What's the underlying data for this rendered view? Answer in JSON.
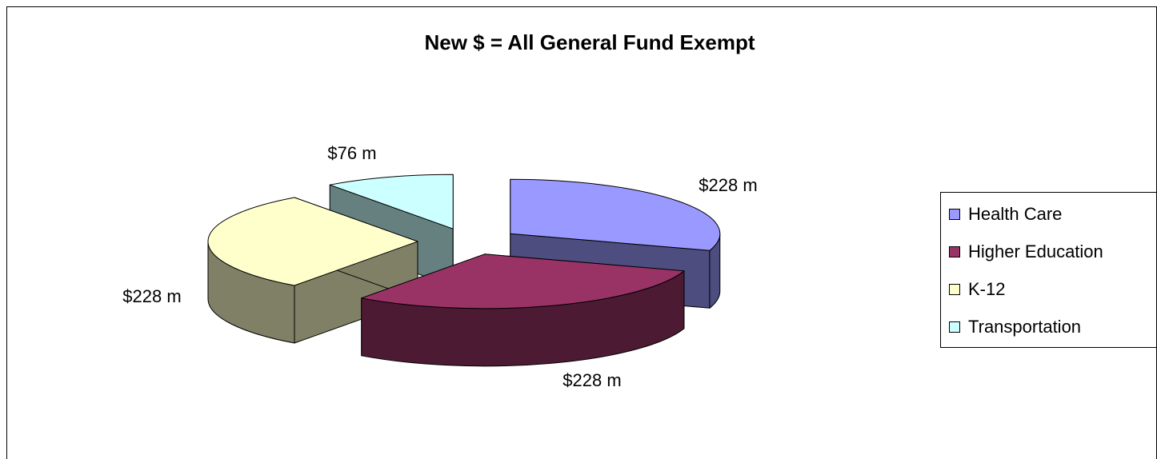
{
  "chart_data": {
    "type": "pie",
    "title": "New $ = All General Fund Exempt",
    "categories": [
      "Health Care",
      "Higher Education",
      "K-12",
      "Transportation"
    ],
    "values": [
      228,
      228,
      228,
      76
    ],
    "value_labels": [
      "$228 m",
      "$228 m",
      "$228 m",
      "$76 m"
    ],
    "colors": [
      "#9999ff",
      "#993366",
      "#ffffcc",
      "#ccffff"
    ],
    "legend": "right"
  }
}
